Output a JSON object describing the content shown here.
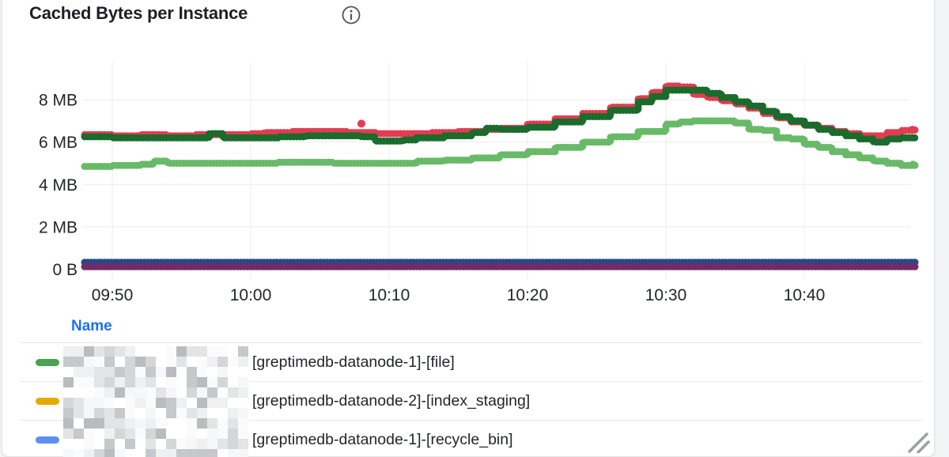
{
  "panel": {
    "title": "Cached Bytes per Instance",
    "info_icon": "info-circle-icon"
  },
  "chart_data": {
    "type": "scatter",
    "title": "Cached Bytes per Instance",
    "x_tick_labels": [
      "09:50",
      "10:00",
      "10:10",
      "10:20",
      "10:30",
      "10:40"
    ],
    "x_tick_minutes": [
      590,
      600,
      610,
      620,
      630,
      640
    ],
    "y_tick_labels": [
      "0 B",
      "2 MB",
      "4 MB",
      "6 MB",
      "8 MB"
    ],
    "y_tick_mb": [
      0,
      2,
      4,
      6,
      8
    ],
    "x_range_minutes": [
      588,
      648.5
    ],
    "y_range_mb": [
      0,
      9.5
    ],
    "grid": true,
    "legend_position": "bottom-table",
    "series": [
      {
        "id": "series-red",
        "color": "#e23c52",
        "points": [
          [
            588,
            6.35
          ],
          [
            590,
            6.3
          ],
          [
            592,
            6.35
          ],
          [
            594,
            6.3
          ],
          [
            596,
            6.35
          ],
          [
            598,
            6.35
          ],
          [
            600,
            6.4
          ],
          [
            601,
            6.45
          ],
          [
            603,
            6.5
          ],
          [
            605,
            6.5
          ],
          [
            607,
            6.45
          ],
          [
            609,
            6.4
          ],
          [
            611,
            6.4
          ],
          [
            613,
            6.45
          ],
          [
            615,
            6.5
          ],
          [
            617,
            6.6
          ],
          [
            618,
            6.65
          ],
          [
            620,
            6.85
          ],
          [
            622,
            7.1
          ],
          [
            624,
            7.35
          ],
          [
            626,
            7.65
          ],
          [
            628,
            8.05
          ],
          [
            629,
            8.35
          ],
          [
            630,
            8.65
          ],
          [
            631,
            8.6
          ],
          [
            632,
            8.25
          ],
          [
            633,
            8.1
          ],
          [
            634,
            7.95
          ],
          [
            635,
            7.8
          ],
          [
            636,
            7.6
          ],
          [
            637,
            7.35
          ],
          [
            638,
            7.15
          ],
          [
            639,
            6.95
          ],
          [
            640,
            6.8
          ],
          [
            641,
            6.65
          ],
          [
            642,
            6.5
          ],
          [
            643,
            6.4
          ],
          [
            644,
            6.3
          ],
          [
            645,
            6.3
          ],
          [
            646,
            6.45
          ],
          [
            647,
            6.55
          ],
          [
            648,
            6.6
          ]
        ]
      },
      {
        "id": "series-dark-green",
        "color": "#1a6b2c",
        "points": [
          [
            588,
            6.25
          ],
          [
            590,
            6.2
          ],
          [
            592,
            6.2
          ],
          [
            594,
            6.2
          ],
          [
            596,
            6.2
          ],
          [
            597,
            6.4
          ],
          [
            598,
            6.2
          ],
          [
            600,
            6.2
          ],
          [
            602,
            6.25
          ],
          [
            604,
            6.3
          ],
          [
            606,
            6.3
          ],
          [
            608,
            6.25
          ],
          [
            609,
            6.05
          ],
          [
            611,
            6.1
          ],
          [
            612,
            6.2
          ],
          [
            614,
            6.3
          ],
          [
            616,
            6.45
          ],
          [
            617,
            6.65
          ],
          [
            618,
            6.6
          ],
          [
            620,
            6.7
          ],
          [
            622,
            6.95
          ],
          [
            624,
            7.2
          ],
          [
            626,
            7.5
          ],
          [
            628,
            7.9
          ],
          [
            629,
            8.15
          ],
          [
            630,
            8.45
          ],
          [
            632,
            8.45
          ],
          [
            633,
            8.3
          ],
          [
            634,
            8.1
          ],
          [
            635,
            7.9
          ],
          [
            636,
            7.7
          ],
          [
            637,
            7.45
          ],
          [
            638,
            7.2
          ],
          [
            639,
            7.0
          ],
          [
            640,
            6.8
          ],
          [
            641,
            6.6
          ],
          [
            642,
            6.45
          ],
          [
            643,
            6.3
          ],
          [
            644,
            6.15
          ],
          [
            645,
            6.0
          ],
          [
            646,
            6.15
          ],
          [
            647,
            6.2
          ],
          [
            648,
            6.2
          ]
        ]
      },
      {
        "id": "series-light-green",
        "color": "#68ba68",
        "points": [
          [
            588,
            4.85
          ],
          [
            590,
            4.9
          ],
          [
            592,
            4.95
          ],
          [
            593,
            5.1
          ],
          [
            594,
            5.0
          ],
          [
            596,
            5.0
          ],
          [
            598,
            5.0
          ],
          [
            600,
            5.0
          ],
          [
            602,
            5.05
          ],
          [
            604,
            5.05
          ],
          [
            606,
            5.0
          ],
          [
            608,
            5.0
          ],
          [
            610,
            5.0
          ],
          [
            612,
            5.1
          ],
          [
            614,
            5.15
          ],
          [
            616,
            5.25
          ],
          [
            618,
            5.4
          ],
          [
            620,
            5.55
          ],
          [
            622,
            5.75
          ],
          [
            624,
            6.0
          ],
          [
            626,
            6.25
          ],
          [
            628,
            6.5
          ],
          [
            630,
            6.85
          ],
          [
            631,
            6.95
          ],
          [
            632,
            7.0
          ],
          [
            634,
            7.0
          ],
          [
            635,
            6.9
          ],
          [
            636,
            6.6
          ],
          [
            637,
            6.55
          ],
          [
            638,
            6.2
          ],
          [
            639,
            6.15
          ],
          [
            640,
            5.9
          ],
          [
            641,
            5.75
          ],
          [
            642,
            5.55
          ],
          [
            643,
            5.4
          ],
          [
            644,
            5.25
          ],
          [
            645,
            5.1
          ],
          [
            646,
            5.0
          ],
          [
            647,
            4.9
          ],
          [
            648,
            4.95
          ]
        ]
      },
      {
        "id": "series-blue",
        "color": "#254a85",
        "points": [
          [
            588,
            0.33
          ],
          [
            648,
            0.33
          ]
        ]
      },
      {
        "id": "series-purple",
        "color": "#732a69",
        "points": [
          [
            588,
            0.12
          ],
          [
            648,
            0.12
          ]
        ]
      }
    ],
    "outlier": {
      "id": "outlier-red",
      "color": "#e23c52",
      "point": [
        608,
        6.87
      ]
    }
  },
  "legend": {
    "header": "Name",
    "rows": [
      {
        "swatch_color": "#4aa351",
        "censored_prefix": true,
        "label": "[greptimedb-datanode-1]-[file]"
      },
      {
        "swatch_color": "#e3ab00",
        "censored_prefix": true,
        "label": "[greptimedb-datanode-2]-[index_staging]"
      },
      {
        "swatch_color": "#5b90f2",
        "censored_prefix": true,
        "label": "[greptimedb-datanode-1]-[recycle_bin]"
      }
    ]
  },
  "colors": {
    "grid_line": "#e9ebed",
    "axis_text": "#21262c",
    "legend_header_blue": "#1f6ff0",
    "card_border": "#e1e4e6",
    "page_background": "#f2f3f4"
  }
}
